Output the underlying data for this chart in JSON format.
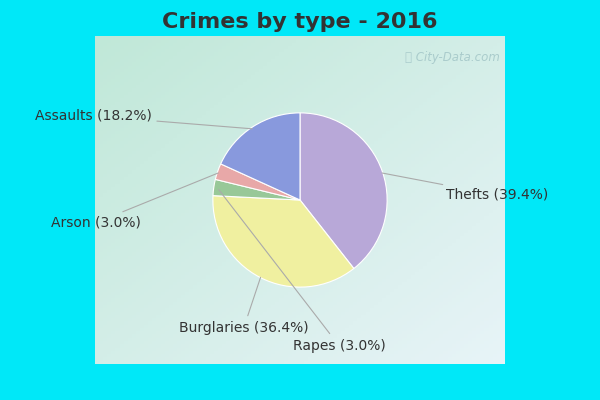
{
  "title": "Crimes by type - 2016",
  "values": [
    39.4,
    36.4,
    3.0,
    3.0,
    18.2
  ],
  "colors": [
    "#b8a8d8",
    "#f0f0a0",
    "#98c898",
    "#e8a8a8",
    "#8899dd"
  ],
  "label_texts": [
    "Thefts (39.4%)",
    "Burglaries (36.4%)",
    "Rapes (3.0%)",
    "Arson (3.0%)",
    "Assaults (18.2%)"
  ],
  "background_cyan": "#00e8f8",
  "background_main_tl": "#c0e8d8",
  "background_main_br": "#e8f0f8",
  "title_fontsize": 16,
  "label_fontsize": 10,
  "title_color": "#333333",
  "watermark_color": "#aacccc",
  "label_color": "#333333",
  "start_angle": 90,
  "mid_angles": [
    19.1,
    -117.3,
    -188.7,
    -199.5,
    -237.6
  ],
  "label_tx": [
    1.42,
    -0.55,
    0.38,
    -1.55,
    -1.45
  ],
  "label_ty": [
    0.05,
    -1.25,
    -1.42,
    -0.22,
    0.82
  ],
  "label_ha": [
    "left",
    "center",
    "center",
    "right",
    "right"
  ]
}
